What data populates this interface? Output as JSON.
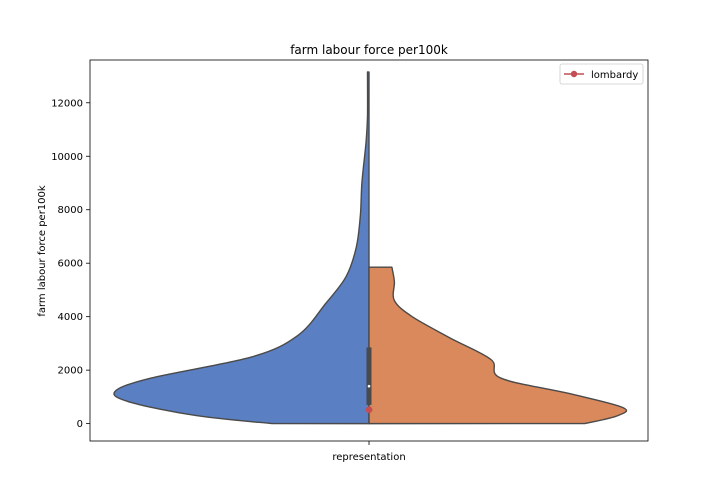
{
  "chart_data": {
    "type": "violin",
    "title": "farm labour force per100k",
    "xlabel": "representation",
    "ylabel": "farm labour force per100k",
    "categories": [
      "representation"
    ],
    "ylim": [
      -650,
      13600
    ],
    "yticks": [
      0,
      2000,
      4000,
      6000,
      8000,
      10000,
      12000
    ],
    "grid": false,
    "legend_position": "top-right",
    "split": true,
    "halves": [
      {
        "side": "left",
        "color": "#5a7fc3",
        "extent": [
          0,
          13150
        ],
        "density_profile": [
          {
            "y": 0,
            "w": 0.38
          },
          {
            "y": 300,
            "w": 0.68
          },
          {
            "y": 800,
            "w": 0.94
          },
          {
            "y": 1200,
            "w": 1.0
          },
          {
            "y": 1700,
            "w": 0.86
          },
          {
            "y": 2500,
            "w": 0.46
          },
          {
            "y": 3300,
            "w": 0.28
          },
          {
            "y": 4500,
            "w": 0.17
          },
          {
            "y": 5500,
            "w": 0.09
          },
          {
            "y": 6600,
            "w": 0.05
          },
          {
            "y": 7800,
            "w": 0.034
          },
          {
            "y": 9000,
            "w": 0.028
          },
          {
            "y": 10500,
            "w": 0.012
          },
          {
            "y": 11500,
            "w": 0.006
          },
          {
            "y": 13150,
            "w": 0.006
          }
        ]
      },
      {
        "side": "right",
        "color": "#da895c",
        "extent": [
          0,
          5850
        ],
        "density_profile": [
          {
            "y": 0,
            "w": 0.85
          },
          {
            "y": 300,
            "w": 0.98
          },
          {
            "y": 600,
            "w": 1.0
          },
          {
            "y": 1100,
            "w": 0.8
          },
          {
            "y": 1700,
            "w": 0.52
          },
          {
            "y": 2400,
            "w": 0.48
          },
          {
            "y": 3200,
            "w": 0.32
          },
          {
            "y": 4000,
            "w": 0.17
          },
          {
            "y": 4600,
            "w": 0.1
          },
          {
            "y": 5300,
            "w": 0.1
          },
          {
            "y": 5850,
            "w": 0.09
          }
        ]
      }
    ],
    "box": {
      "q1": 700,
      "median": 1400,
      "q3": 2850
    },
    "point": {
      "name": "lombardy",
      "value": 520,
      "color": "#c44e52"
    }
  },
  "legend": {
    "label": "lombardy"
  }
}
